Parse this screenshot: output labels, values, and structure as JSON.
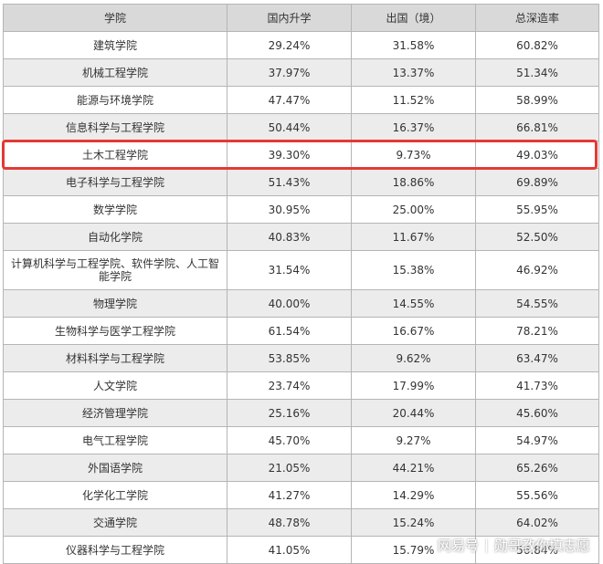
{
  "table": {
    "headers": [
      "学院",
      "国内升学",
      "出国（境）",
      "总深造率"
    ],
    "rows": [
      [
        "建筑学院",
        "29.24%",
        "31.58%",
        "60.82%"
      ],
      [
        "机械工程学院",
        "37.97%",
        "13.37%",
        "51.34%"
      ],
      [
        "能源与环境学院",
        "47.47%",
        "11.52%",
        "58.99%"
      ],
      [
        "信息科学与工程学院",
        "50.44%",
        "16.37%",
        "66.81%"
      ],
      [
        "土木工程学院",
        "39.30%",
        "9.73%",
        "49.03%"
      ],
      [
        "电子科学与工程学院",
        "51.43%",
        "18.86%",
        "69.89%"
      ],
      [
        "数学学院",
        "30.95%",
        "25.00%",
        "55.95%"
      ],
      [
        "自动化学院",
        "40.83%",
        "11.67%",
        "52.50%"
      ],
      [
        "计算机科学与工程学院、软件学院、人工智能学院",
        "31.54%",
        "15.38%",
        "46.92%"
      ],
      [
        "物理学院",
        "40.00%",
        "14.55%",
        "54.55%"
      ],
      [
        "生物科学与医学工程学院",
        "61.54%",
        "16.67%",
        "78.21%"
      ],
      [
        "材料科学与工程学院",
        "53.85%",
        "9.62%",
        "63.47%"
      ],
      [
        "人文学院",
        "23.74%",
        "17.99%",
        "41.73%"
      ],
      [
        "经济管理学院",
        "25.16%",
        "20.44%",
        "45.60%"
      ],
      [
        "电气工程学院",
        "45.70%",
        "9.27%",
        "54.97%"
      ],
      [
        "外国语学院",
        "21.05%",
        "44.21%",
        "65.26%"
      ],
      [
        "化学化工学院",
        "41.27%",
        "14.29%",
        "55.56%"
      ],
      [
        "交通学院",
        "48.78%",
        "15.24%",
        "64.02%"
      ],
      [
        "仪器科学与工程学院",
        "41.05%",
        "15.79%",
        "56.84%"
      ]
    ]
  },
  "watermark": {
    "left": "网易号",
    "right": "勋哥教你填志愿"
  },
  "colors": {
    "header_bg": "#d9d9d9",
    "row_alt_bg": "#ececec",
    "highlight": "#e53935"
  }
}
